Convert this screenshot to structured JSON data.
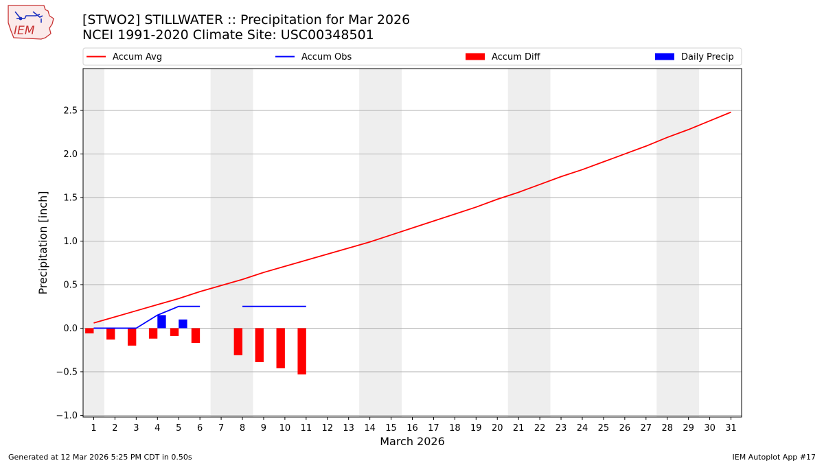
{
  "title": {
    "line1": "[STWO2] STILLWATER :: Precipitation for Mar 2026",
    "line2": "NCEI 1991-2020 Climate Site: USC00348501"
  },
  "logo": {
    "text": "IEM"
  },
  "footer": {
    "generated": "Generated at 12 Mar 2026 5:25 PM CDT in 0.50s",
    "app": "IEM Autoplot App #17"
  },
  "colors": {
    "avg": "#ff0000",
    "obs": "#0000ff",
    "diff": "#ff0000",
    "daily": "#0000ff",
    "weekend": "#eeeeee",
    "grid": "#b0b0b0"
  },
  "chart_data": {
    "type": "bar",
    "xlabel": "March 2026",
    "ylabel": "Precipitation [inch]",
    "xlim": [
      0.5,
      31.5
    ],
    "ylim": [
      -1.02,
      2.98
    ],
    "yticks": [
      -1.0,
      -0.5,
      0.0,
      0.5,
      1.0,
      1.5,
      2.0,
      2.5
    ],
    "ytick_labels": [
      "−1.0",
      "−0.5",
      "0.0",
      "0.5",
      "1.0",
      "1.5",
      "2.0",
      "2.5"
    ],
    "days": [
      1,
      2,
      3,
      4,
      5,
      6,
      7,
      8,
      9,
      10,
      11,
      12,
      13,
      14,
      15,
      16,
      17,
      18,
      19,
      20,
      21,
      22,
      23,
      24,
      25,
      26,
      27,
      28,
      29,
      30,
      31
    ],
    "weekend_spans": [
      [
        0.5,
        1.5
      ],
      [
        6.5,
        8.5
      ],
      [
        13.5,
        15.5
      ],
      [
        20.5,
        22.5
      ],
      [
        27.5,
        29.5
      ]
    ],
    "legend": [
      {
        "label": "Accum Avg",
        "kind": "line",
        "color": "#ff0000"
      },
      {
        "label": "Accum Obs",
        "kind": "line",
        "color": "#0000ff"
      },
      {
        "label": "Accum Diff",
        "kind": "bar",
        "color": "#ff0000"
      },
      {
        "label": "Daily Precip",
        "kind": "bar",
        "color": "#0000ff"
      }
    ],
    "series": [
      {
        "name": "Accum Avg",
        "type": "line",
        "x": [
          1,
          2,
          3,
          4,
          5,
          6,
          7,
          8,
          9,
          10,
          11,
          12,
          13,
          14,
          15,
          16,
          17,
          18,
          19,
          20,
          21,
          22,
          23,
          24,
          25,
          26,
          27,
          28,
          29,
          30,
          31
        ],
        "values": [
          0.06,
          0.13,
          0.2,
          0.27,
          0.34,
          0.42,
          0.49,
          0.56,
          0.64,
          0.71,
          0.78,
          0.85,
          0.92,
          0.99,
          1.07,
          1.15,
          1.23,
          1.31,
          1.39,
          1.48,
          1.56,
          1.65,
          1.74,
          1.82,
          1.91,
          2.0,
          2.09,
          2.19,
          2.28,
          2.38,
          2.48
        ]
      },
      {
        "name": "Accum Obs",
        "type": "line",
        "segments": [
          {
            "x": [
              1,
              2,
              3,
              4,
              5,
              6
            ],
            "values": [
              0.0,
              0.0,
              0.0,
              0.15,
              0.25,
              0.25
            ]
          },
          {
            "x": [
              8,
              9,
              10,
              11
            ],
            "values": [
              0.25,
              0.25,
              0.25,
              0.25
            ]
          }
        ]
      },
      {
        "name": "Accum Diff",
        "type": "bar",
        "x": [
          1,
          2,
          3,
          4,
          5,
          6,
          8,
          9,
          10,
          11
        ],
        "values": [
          -0.06,
          -0.13,
          -0.2,
          -0.12,
          -0.09,
          -0.17,
          -0.31,
          -0.39,
          -0.46,
          -0.53
        ]
      },
      {
        "name": "Daily Precip",
        "type": "bar",
        "x": [
          4,
          5
        ],
        "values": [
          0.15,
          0.1
        ]
      }
    ]
  }
}
